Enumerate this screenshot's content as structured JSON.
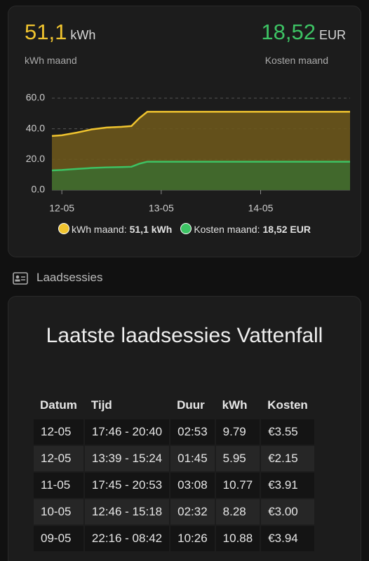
{
  "stats": [
    {
      "value": "51,1",
      "unit": "kWh",
      "label": "kWh maand"
    },
    {
      "value": "18,52",
      "unit": "EUR",
      "label": "Kosten maand"
    }
  ],
  "chart_data": {
    "type": "area",
    "x": [
      11.9,
      12.0,
      12.15,
      12.3,
      12.45,
      12.6,
      12.7,
      12.78,
      12.86,
      13.0,
      14.0,
      14.9
    ],
    "xlim": [
      11.9,
      14.9
    ],
    "xticks": [
      {
        "value": 12,
        "label": "12-05"
      },
      {
        "value": 13,
        "label": "13-05"
      },
      {
        "value": 14,
        "label": "14-05"
      }
    ],
    "ylim": [
      0,
      60
    ],
    "yticks": [
      {
        "value": 0,
        "label": "0.0"
      },
      {
        "value": 20,
        "label": "20.0"
      },
      {
        "value": 40,
        "label": "40.0"
      },
      {
        "value": 60,
        "label": "60.0"
      }
    ],
    "grid": true,
    "series": [
      {
        "name": "kWh maand",
        "color": "#f0c42f",
        "fill": "#6b561c",
        "legend_value": "51,1 kWh",
        "values": [
          35.3,
          35.8,
          37.5,
          39.6,
          40.8,
          41.3,
          41.8,
          47,
          51.1,
          51.1,
          51.1,
          51.1
        ]
      },
      {
        "name": "Kosten maand",
        "color": "#3dc364",
        "fill": "#3d6a2f",
        "legend_value": "18,52 EUR",
        "values": [
          12.8,
          13.1,
          13.8,
          14.4,
          14.8,
          15.0,
          15.2,
          17.2,
          18.52,
          18.52,
          18.52,
          18.52
        ]
      }
    ]
  },
  "section": {
    "title": "Laadsessies"
  },
  "table": {
    "title": "Laatste laadsessies Vattenfall",
    "header": [
      "Datum",
      "Tijd",
      "Duur",
      "kWh",
      "Kosten"
    ],
    "rows": [
      [
        "12-05",
        "17:46 - 20:40",
        "02:53",
        "9.79",
        "€3.55"
      ],
      [
        "12-05",
        "13:39 - 15:24",
        "01:45",
        "5.95",
        "€2.15"
      ],
      [
        "11-05",
        "17:45 - 20:53",
        "03:08",
        "10.77",
        "€3.91"
      ],
      [
        "10-05",
        "12:46 - 15:18",
        "02:32",
        "8.28",
        "€3.00"
      ],
      [
        "09-05",
        "22:16 - 08:42",
        "10:26",
        "10.88",
        "€3.94"
      ]
    ]
  }
}
